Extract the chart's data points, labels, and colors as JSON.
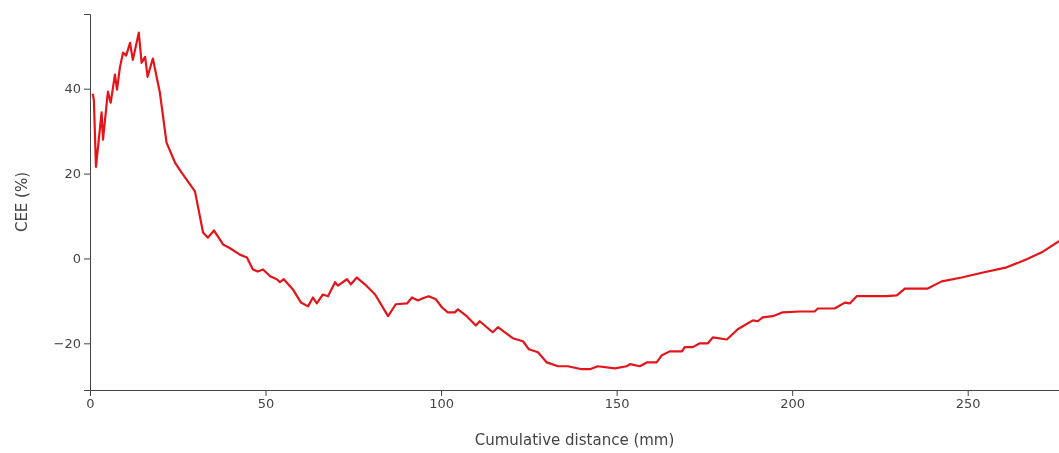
{
  "chart_data": {
    "type": "line",
    "xlabel": "Cumulative distance (mm)",
    "ylabel": "CEE (%)",
    "xlim": [
      0,
      276
    ],
    "ylim": [
      -31,
      57.6
    ],
    "xticks": [
      0,
      50,
      100,
      150,
      200,
      250
    ],
    "yticks": [
      -20,
      0,
      20,
      40
    ],
    "marker": "none",
    "line_style": "solid",
    "series": [
      {
        "color": "#e3151a",
        "x": [
          0.8,
          1.1,
          1.7,
          3.3,
          3.7,
          5.1,
          5.9,
          7.1,
          7.7,
          8.5,
          9.4,
          10.3,
          11.4,
          12.2,
          13.9,
          14.7,
          15.7,
          16.4,
          17.9,
          19.9,
          21.8,
          24.2,
          26.1,
          29.9,
          32.2,
          33.6,
          35.3,
          37.9,
          39.9,
          42.7,
          44.7,
          46.4,
          47.8,
          49.3,
          51.3,
          53.2,
          54.1,
          55.2,
          57.8,
          60.1,
          62.1,
          63.5,
          64.6,
          66.3,
          67.8,
          69.8,
          70.6,
          73.2,
          74.3,
          76.0,
          78.3,
          81.2,
          84.9,
          87.1,
          90.3,
          91.7,
          93.4,
          94.8,
          96.5,
          98.5,
          100.2,
          101.9,
          103.9,
          104.8,
          107.3,
          109.9,
          111.0,
          114.7,
          116.2,
          120.4,
          123.3,
          125.0,
          127.6,
          130.1,
          133.3,
          136.1,
          140.1,
          142.4,
          144.6,
          149.5,
          152.9,
          153.8,
          156.6,
          158.6,
          161.4,
          162.9,
          165.1,
          168.6,
          169.4,
          171.7,
          173.7,
          176.0,
          177.4,
          181.4,
          184.5,
          188.8,
          190.2,
          191.6,
          194.5,
          197.3,
          202.2,
          206.4,
          207.3,
          212.1,
          215.0,
          216.4,
          218.4,
          221.5,
          226.9,
          229.8,
          232.1,
          238.6,
          242.6,
          248.3,
          253.4,
          261.1,
          266.8,
          271.4,
          275.9
        ],
        "values": [
          38.6,
          37.4,
          21.6,
          34.4,
          28.0,
          39.3,
          36.7,
          43.3,
          39.8,
          44.9,
          48.5,
          47.8,
          50.8,
          46.8,
          53.2,
          46.1,
          47.5,
          42.8,
          47.1,
          39.1,
          27.3,
          22.6,
          20.2,
          15.8,
          6.1,
          4.9,
          6.6,
          3.3,
          2.4,
          0.9,
          0.2,
          -2.6,
          -3.1,
          -2.6,
          -4.2,
          -4.9,
          -5.6,
          -4.9,
          -7.3,
          -10.4,
          -11.3,
          -9.2,
          -10.6,
          -8.5,
          -8.9,
          -5.6,
          -6.4,
          -4.9,
          -6.1,
          -4.5,
          -6.1,
          -8.5,
          -13.6,
          -10.8,
          -10.6,
          -9.2,
          -9.9,
          -9.4,
          -8.9,
          -9.6,
          -11.5,
          -12.7,
          -12.7,
          -12.0,
          -13.6,
          -15.8,
          -14.8,
          -17.4,
          -16.2,
          -18.8,
          -19.5,
          -21.4,
          -22.1,
          -24.5,
          -25.4,
          -25.4,
          -26.1,
          -26.1,
          -25.4,
          -25.9,
          -25.4,
          -24.9,
          -25.4,
          -24.5,
          -24.5,
          -22.8,
          -21.9,
          -21.9,
          -20.9,
          -20.9,
          -20.0,
          -20.0,
          -18.6,
          -19.1,
          -16.7,
          -14.6,
          -14.8,
          -13.9,
          -13.6,
          -12.7,
          -12.5,
          -12.5,
          -11.8,
          -11.8,
          -10.4,
          -10.6,
          -8.9,
          -8.9,
          -8.9,
          -8.7,
          -7.1,
          -7.1,
          -5.4,
          -4.5,
          -3.5,
          -2.1,
          -0.2,
          1.6,
          4.0
        ]
      }
    ]
  }
}
